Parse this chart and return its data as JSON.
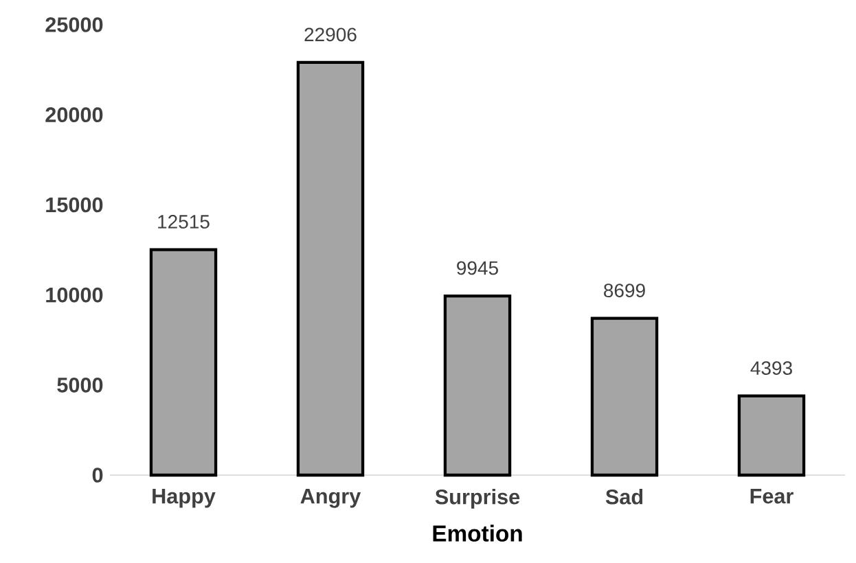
{
  "chart_data": {
    "type": "bar",
    "xlabel": "Emotion",
    "categories": [
      "Happy",
      "Angry",
      "Surprise",
      "Sad",
      "Fear"
    ],
    "values": [
      12515,
      22906,
      9945,
      8699,
      4393
    ],
    "color": "#a5a5a5",
    "ylim": [
      0,
      25000
    ],
    "yticks": [
      0,
      5000,
      10000,
      15000,
      20000,
      25000
    ],
    "data_labels": true
  }
}
